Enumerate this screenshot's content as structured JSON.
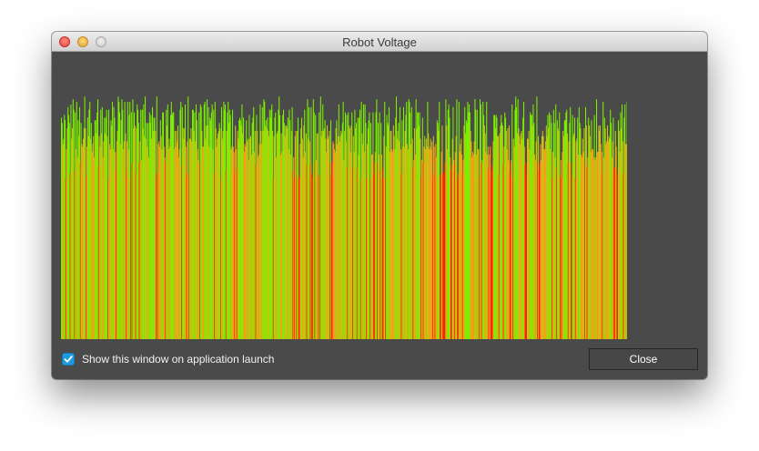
{
  "window": {
    "title": "Robot Voltage"
  },
  "footer": {
    "checkbox_label": "Show this window on application launch",
    "checkbox_checked": true,
    "close_label": "Close"
  },
  "colors": {
    "window_bg": "#4a4a4a",
    "low": "#ff2200",
    "mid": "#ff9a1a",
    "transition": "#c8c414",
    "high": "#7df000"
  },
  "chart_data": {
    "type": "bar",
    "title": "",
    "xlabel": "",
    "ylabel": "",
    "ylim": [
      0,
      100
    ],
    "values": [
      84,
      82,
      74,
      76,
      85,
      83,
      61,
      72,
      80,
      88,
      85,
      82,
      63,
      89,
      76,
      80,
      91,
      87,
      64,
      86,
      72,
      90,
      69,
      83,
      77,
      88,
      67,
      82,
      74,
      73,
      76,
      80,
      92,
      80,
      62,
      73,
      84,
      77,
      87,
      90,
      76,
      82,
      71,
      74,
      77,
      69,
      83,
      83,
      78,
      86,
      91,
      66,
      77,
      73,
      87,
      78,
      88,
      69,
      75,
      84,
      78,
      84,
      87,
      77,
      61,
      87,
      74,
      72,
      83,
      81,
      90,
      72,
      88,
      84,
      71,
      64,
      75,
      79,
      92,
      90,
      86,
      74,
      83,
      91,
      87,
      72,
      75,
      90,
      78,
      64,
      75,
      90,
      72,
      85,
      90,
      61,
      86,
      67,
      91,
      80,
      86,
      81,
      63,
      80,
      89,
      87,
      82,
      67,
      75,
      87,
      68,
      87,
      80,
      89,
      77,
      92,
      76,
      82,
      73,
      82,
      69,
      86,
      82,
      85,
      76,
      88,
      79,
      84,
      84,
      79,
      62,
      92,
      63,
      74,
      75,
      73,
      83,
      77,
      72,
      86,
      86,
      73,
      69,
      67,
      87,
      81,
      89,
      72,
      76,
      73,
      85,
      90,
      85,
      86,
      86,
      72,
      79,
      73,
      79,
      75,
      81,
      69,
      72,
      87,
      90,
      66,
      88,
      80,
      76,
      80,
      89,
      73,
      62,
      75,
      92,
      63,
      76,
      76,
      80,
      75,
      87,
      87,
      79,
      86,
      75,
      89,
      83,
      72,
      68,
      86,
      67,
      89,
      88,
      79,
      73,
      73,
      89,
      90,
      76,
      81,
      91,
      81,
      88,
      73,
      84,
      83,
      86,
      89,
      72,
      87,
      63,
      90,
      80,
      73,
      76,
      78,
      79,
      82,
      80,
      61,
      88,
      76,
      79,
      90,
      87,
      89,
      64,
      79,
      86,
      90,
      82,
      87,
      85,
      72,
      73,
      87,
      73,
      71,
      63,
      81,
      72,
      65,
      79,
      76,
      83,
      84,
      83,
      81,
      89,
      78,
      84,
      71,
      74,
      73,
      83,
      75,
      76,
      68,
      85,
      76,
      77,
      70,
      82,
      84,
      88,
      71,
      79,
      66,
      85,
      79,
      69,
      70,
      74,
      89,
      79,
      74,
      88,
      79,
      91,
      90,
      81,
      83,
      80,
      84,
      79,
      77,
      87,
      84,
      87,
      89,
      79,
      61,
      77,
      84,
      86,
      69,
      78,
      79,
      87,
      92,
      85,
      70,
      78,
      71,
      85,
      87,
      82,
      77,
      81,
      81,
      80,
      84,
      72,
      87,
      83,
      70,
      79,
      88,
      64,
      69,
      61,
      77,
      79,
      62,
      79,
      84,
      61,
      62,
      74,
      80,
      84,
      76,
      69,
      81,
      87,
      71,
      78,
      66,
      91,
      76,
      88,
      75,
      66,
      88,
      63,
      61,
      91,
      86,
      67,
      85,
      68,
      78,
      78,
      62,
      86,
      62,
      92,
      77,
      79,
      89,
      79,
      80,
      83,
      76,
      71,
      81,
      76,
      77,
      79,
      67,
      83,
      62,
      67,
      75,
      74,
      72,
      71,
      80,
      83,
      74,
      77,
      89,
      75,
      77,
      79,
      78,
      82,
      90,
      68,
      79,
      86,
      75,
      85,
      65,
      86,
      81,
      80,
      71,
      81,
      86,
      65,
      77,
      71,
      87,
      80,
      82,
      65,
      84,
      70,
      84,
      87,
      61,
      90,
      78,
      74,
      89,
      71,
      89,
      82,
      61,
      74,
      80,
      83,
      86,
      61,
      82,
      70,
      70,
      86,
      63,
      67,
      71,
      86,
      91,
      67,
      82,
      70,
      86,
      64,
      82,
      70,
      61,
      65,
      77,
      90,
      61,
      73,
      85,
      82,
      81,
      88,
      71,
      79,
      79,
      72,
      71,
      81,
      77,
      72,
      84,
      92,
      76,
      79,
      82,
      75,
      88,
      72,
      63,
      83,
      73,
      88,
      73,
      79,
      85,
      90,
      74,
      72,
      91,
      90,
      86,
      74,
      88,
      76,
      65,
      68,
      80,
      70,
      91,
      80,
      86,
      86,
      81,
      86,
      76,
      61,
      68,
      84,
      67,
      73,
      77,
      72,
      76,
      73,
      90,
      78,
      72,
      73,
      76,
      72,
      75,
      61,
      77,
      73,
      63,
      74,
      69,
      83,
      82,
      79,
      90,
      62,
      62,
      71,
      81,
      63,
      63,
      67,
      64,
      91,
      81,
      72,
      87,
      89,
      84,
      69,
      64,
      66,
      76,
      88,
      68,
      66,
      71,
      77,
      91,
      61,
      63,
      90,
      71,
      74,
      76,
      70,
      63,
      68,
      81,
      88,
      78,
      83,
      82,
      90,
      86,
      89,
      86,
      79,
      75,
      69,
      71,
      70,
      75,
      91,
      87,
      70,
      87,
      72,
      72,
      62,
      91,
      89,
      67,
      68,
      90,
      85,
      81,
      78,
      71,
      90,
      70,
      73,
      65,
      70,
      73,
      61,
      64,
      66,
      75,
      85,
      85,
      80,
      85,
      84,
      77,
      77,
      62,
      78,
      81,
      85,
      82,
      81,
      66,
      73,
      86,
      84,
      79,
      72,
      80,
      68,
      81,
      63,
      67,
      68,
      89,
      61,
      76,
      73,
      87,
      92,
      88,
      78,
      91,
      80,
      77,
      74,
      78,
      79,
      76,
      84,
      90,
      73,
      66,
      67,
      62,
      76,
      76,
      79,
      72,
      86,
      85,
      85,
      81,
      89,
      82,
      70,
      68,
      75,
      92,
      67,
      77,
      64,
      67,
      74,
      68,
      77,
      79,
      77,
      72,
      72,
      75,
      81,
      77,
      85,
      80,
      86,
      72,
      85,
      82,
      61,
      71,
      87,
      82,
      69,
      89,
      65,
      83,
      80,
      79,
      86,
      62,
      68,
      61,
      71,
      79,
      77,
      83,
      83,
      86,
      87,
      78,
      67,
      75,
      82,
      88,
      67,
      62,
      85,
      77,
      78,
      84,
      61,
      75,
      76,
      84,
      70,
      88,
      82,
      80,
      70,
      69,
      76,
      71,
      80,
      67,
      88,
      81,
      65,
      69,
      84,
      81,
      77,
      71,
      83,
      72,
      72,
      69,
      85,
      68,
      69,
      91,
      71,
      71,
      81,
      79,
      81,
      74,
      71,
      63,
      90,
      69,
      84,
      80,
      74,
      75,
      81,
      75,
      77,
      76,
      87,
      82,
      69,
      75,
      84,
      65,
      65,
      79,
      73,
      65,
      62,
      83,
      79,
      71,
      86,
      80,
      89,
      75,
      63,
      84,
      89,
      74,
      74,
      90,
      83,
      64,
      88,
      75,
      71,
      90,
      79,
      81,
      76,
      85,
      69,
      67,
      87,
      81,
      71,
      83,
      86,
      72,
      79,
      87,
      61,
      76,
      73,
      71,
      85,
      82,
      75,
      79,
      84,
      84,
      82,
      67,
      77,
      73,
      88,
      73,
      73,
      73,
      65,
      79,
      76,
      92,
      76,
      70,
      71,
      82,
      81,
      81,
      89,
      70,
      74,
      87,
      62,
      77,
      66,
      92,
      85,
      84,
      77,
      63,
      75
    ]
  }
}
